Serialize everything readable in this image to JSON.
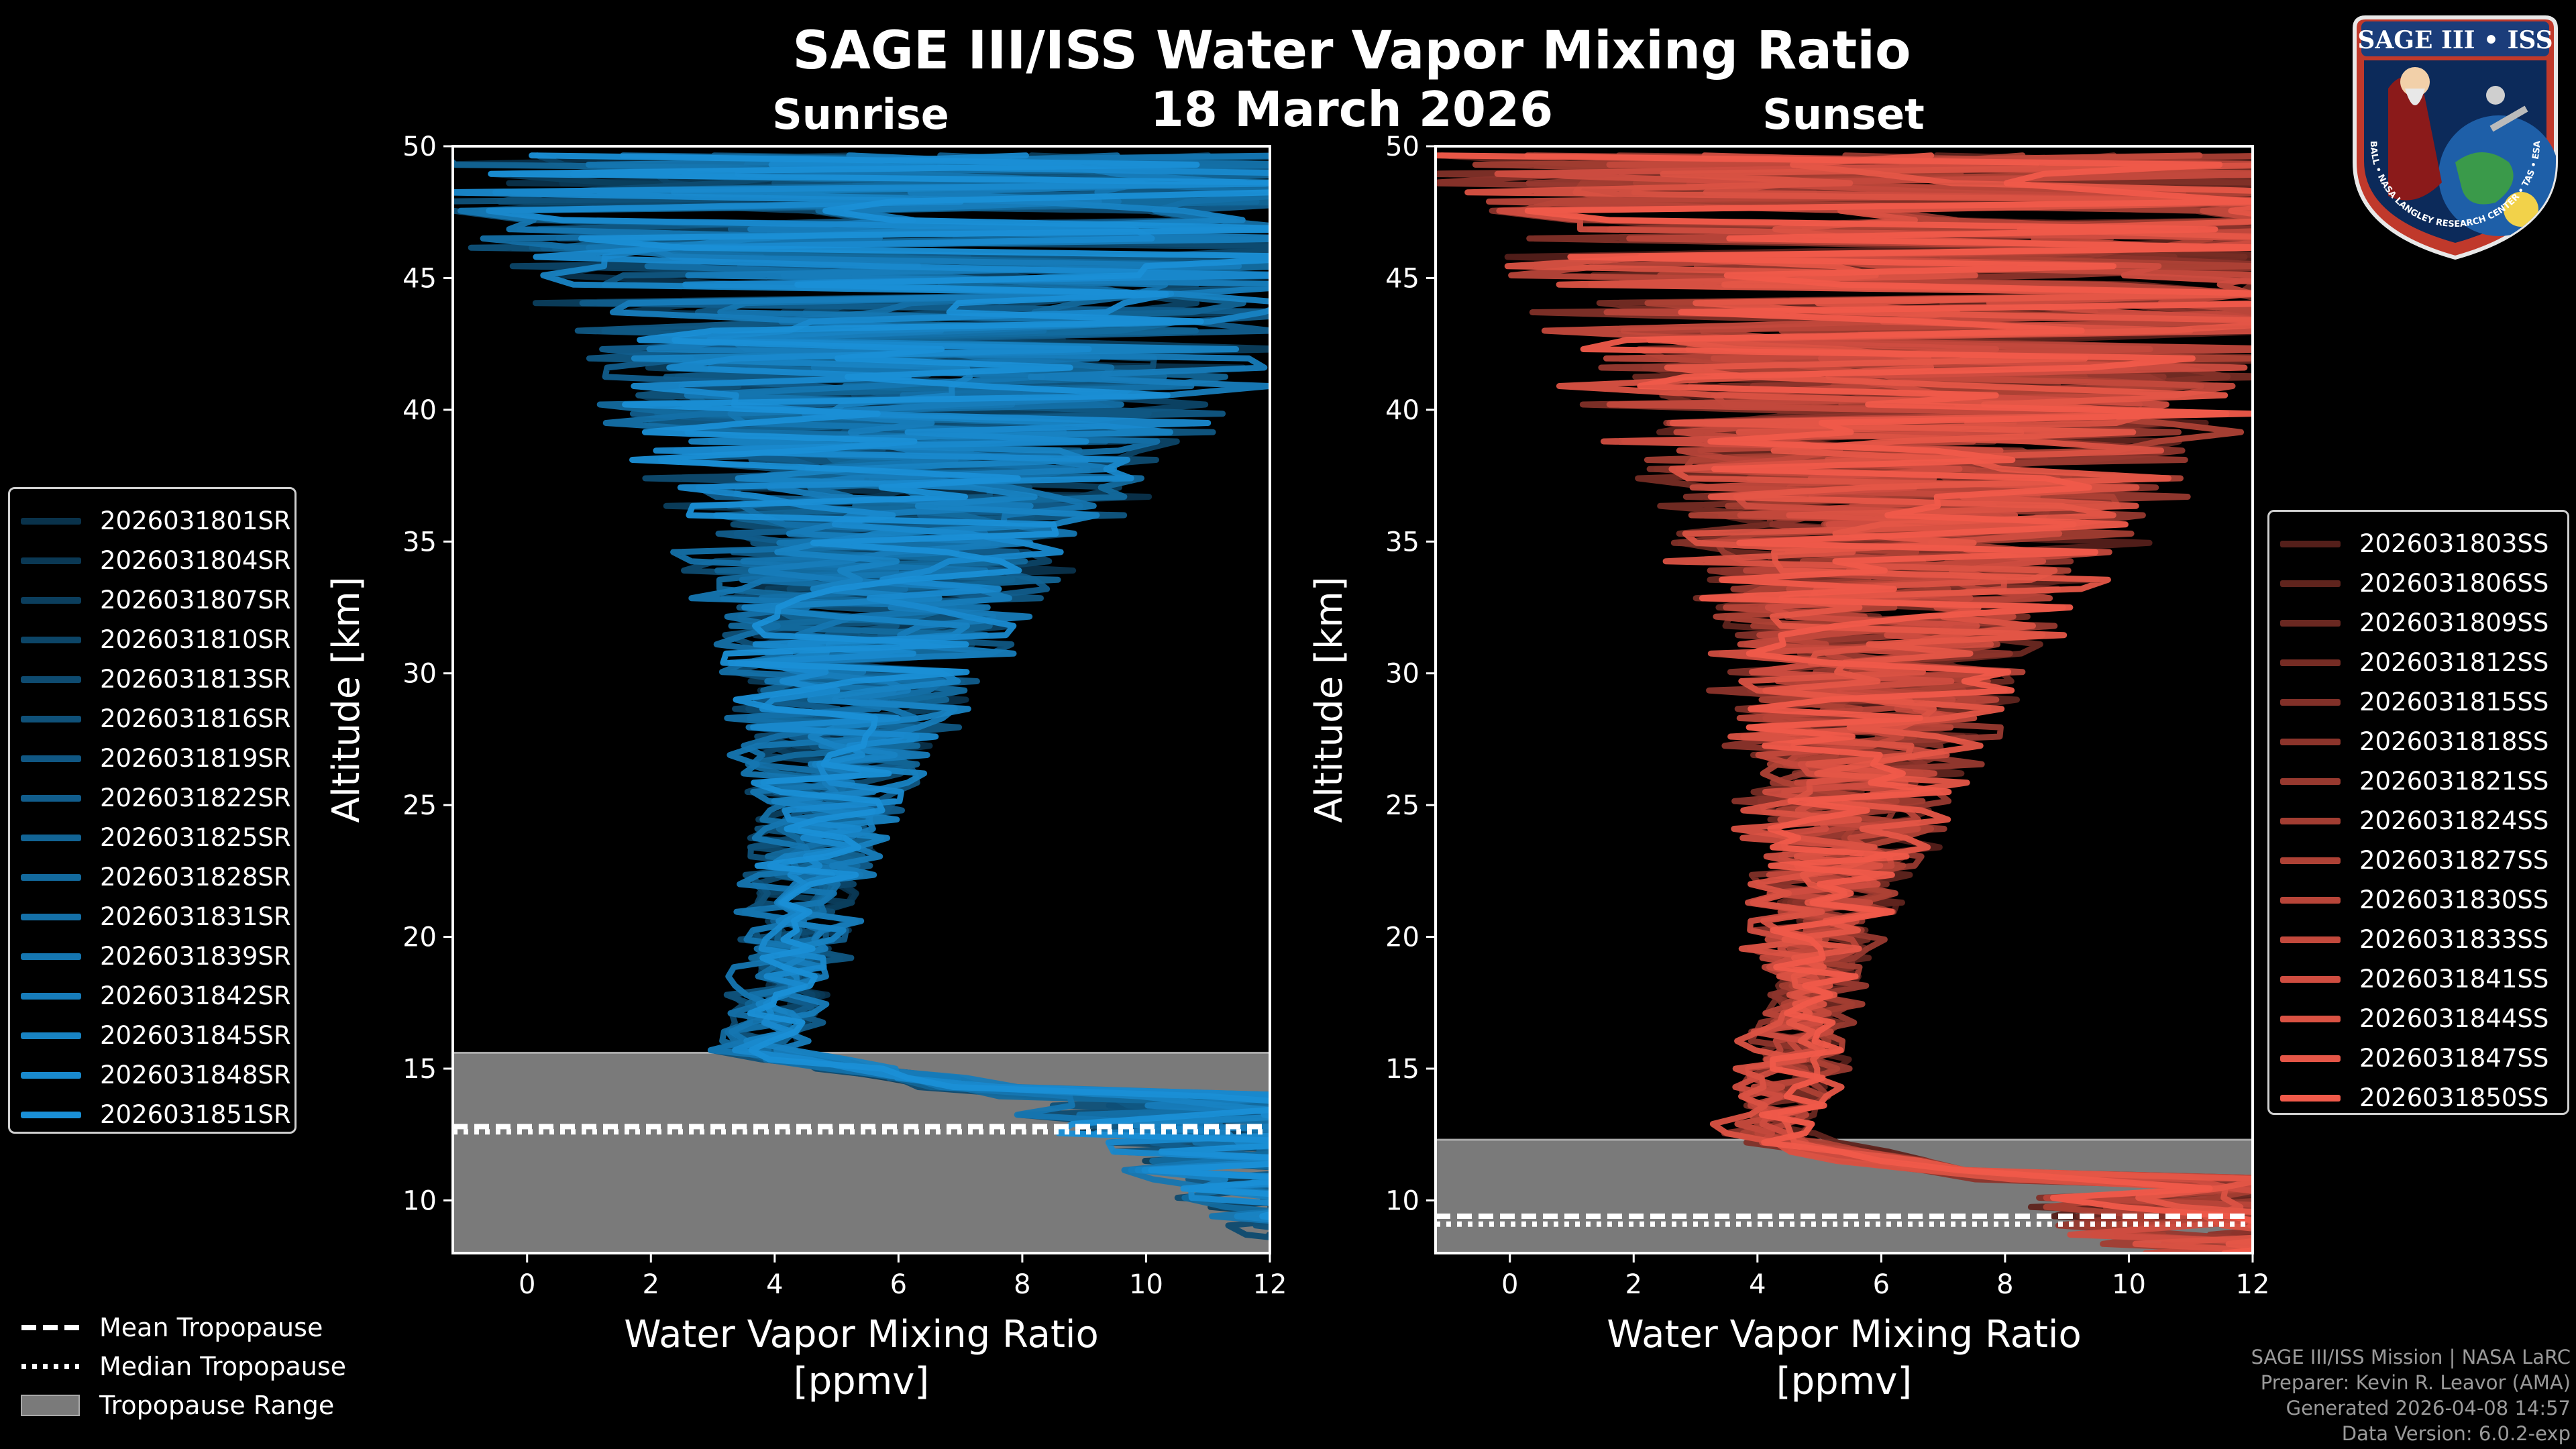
{
  "header": {
    "title": "SAGE III/ISS Water Vapor Mixing Ratio",
    "date": "18 March 2026"
  },
  "logo": {
    "text": "SAGE III • ISS",
    "ring_text": "BALL • NASA LANGLEY RESEARCH CENTER • TAS • ESA"
  },
  "colors": {
    "sunrise": "#1a8fd6",
    "sunset": "#f05a4a",
    "tropopause_fill": "#7a7a7a",
    "background": "#000000"
  },
  "footer": {
    "line1": "SAGE III/ISS Mission | NASA LaRC",
    "line2": "Preparer: Kevin R. Leavor (AMA)",
    "line3": "Generated 2026-04-08 14:57",
    "line4": "Data Version: 6.0.2-exp"
  },
  "tropopause_legend": {
    "mean": "Mean Tropopause",
    "median": "Median Tropopause",
    "range": "Tropopause Range"
  },
  "chart_data": [
    {
      "type": "line",
      "panel": "sunrise",
      "title": "Sunrise",
      "xlabel": "Water Vapor Mixing Ratio\n[ppmv]",
      "xlabel_line1": "Water Vapor Mixing Ratio",
      "xlabel_line2": "[ppmv]",
      "ylabel": "Altitude [km]",
      "xlim": [
        -1.2,
        12
      ],
      "ylim": [
        8,
        50
      ],
      "xticks": [
        0,
        2,
        4,
        6,
        8,
        10,
        12
      ],
      "yticks": [
        10,
        15,
        20,
        25,
        30,
        35,
        40,
        45,
        50
      ],
      "tropopause": {
        "range": [
          8.0,
          15.6
        ],
        "mean": 12.8,
        "median": 12.6
      },
      "series": [
        {
          "name": "2026031801SR",
          "seed": 11
        },
        {
          "name": "2026031804SR",
          "seed": 12
        },
        {
          "name": "2026031807SR",
          "seed": 13
        },
        {
          "name": "2026031810SR",
          "seed": 14
        },
        {
          "name": "2026031813SR",
          "seed": 15
        },
        {
          "name": "2026031816SR",
          "seed": 16
        },
        {
          "name": "2026031819SR",
          "seed": 17
        },
        {
          "name": "2026031822SR",
          "seed": 18
        },
        {
          "name": "2026031825SR",
          "seed": 19
        },
        {
          "name": "2026031828SR",
          "seed": 20
        },
        {
          "name": "2026031831SR",
          "seed": 21
        },
        {
          "name": "2026031839SR",
          "seed": 22
        },
        {
          "name": "2026031842SR",
          "seed": 23
        },
        {
          "name": "2026031845SR",
          "seed": 24
        },
        {
          "name": "2026031848SR",
          "seed": 25
        },
        {
          "name": "2026031851SR",
          "seed": 26
        }
      ]
    },
    {
      "type": "line",
      "panel": "sunset",
      "title": "Sunset",
      "xlabel": "Water Vapor Mixing Ratio\n[ppmv]",
      "xlabel_line1": "Water Vapor Mixing Ratio",
      "xlabel_line2": "[ppmv]",
      "ylabel": "Altitude [km]",
      "xlim": [
        -1.2,
        12
      ],
      "ylim": [
        8,
        50
      ],
      "xticks": [
        0,
        2,
        4,
        6,
        8,
        10,
        12
      ],
      "yticks": [
        10,
        15,
        20,
        25,
        30,
        35,
        40,
        45,
        50
      ],
      "tropopause": {
        "range": [
          8.0,
          12.3
        ],
        "mean": 9.4,
        "median": 9.1
      },
      "series": [
        {
          "name": "2026031803SS",
          "seed": 41
        },
        {
          "name": "2026031806SS",
          "seed": 42
        },
        {
          "name": "2026031809SS",
          "seed": 43
        },
        {
          "name": "2026031812SS",
          "seed": 44
        },
        {
          "name": "2026031815SS",
          "seed": 45
        },
        {
          "name": "2026031818SS",
          "seed": 46
        },
        {
          "name": "2026031821SS",
          "seed": 47
        },
        {
          "name": "2026031824SS",
          "seed": 48
        },
        {
          "name": "2026031827SS",
          "seed": 49
        },
        {
          "name": "2026031830SS",
          "seed": 50
        },
        {
          "name": "2026031833SS",
          "seed": 51
        },
        {
          "name": "2026031841SS",
          "seed": 52
        },
        {
          "name": "2026031844SS",
          "seed": 53
        },
        {
          "name": "2026031847SS",
          "seed": 54
        },
        {
          "name": "2026031850SS",
          "seed": 55
        }
      ]
    }
  ]
}
